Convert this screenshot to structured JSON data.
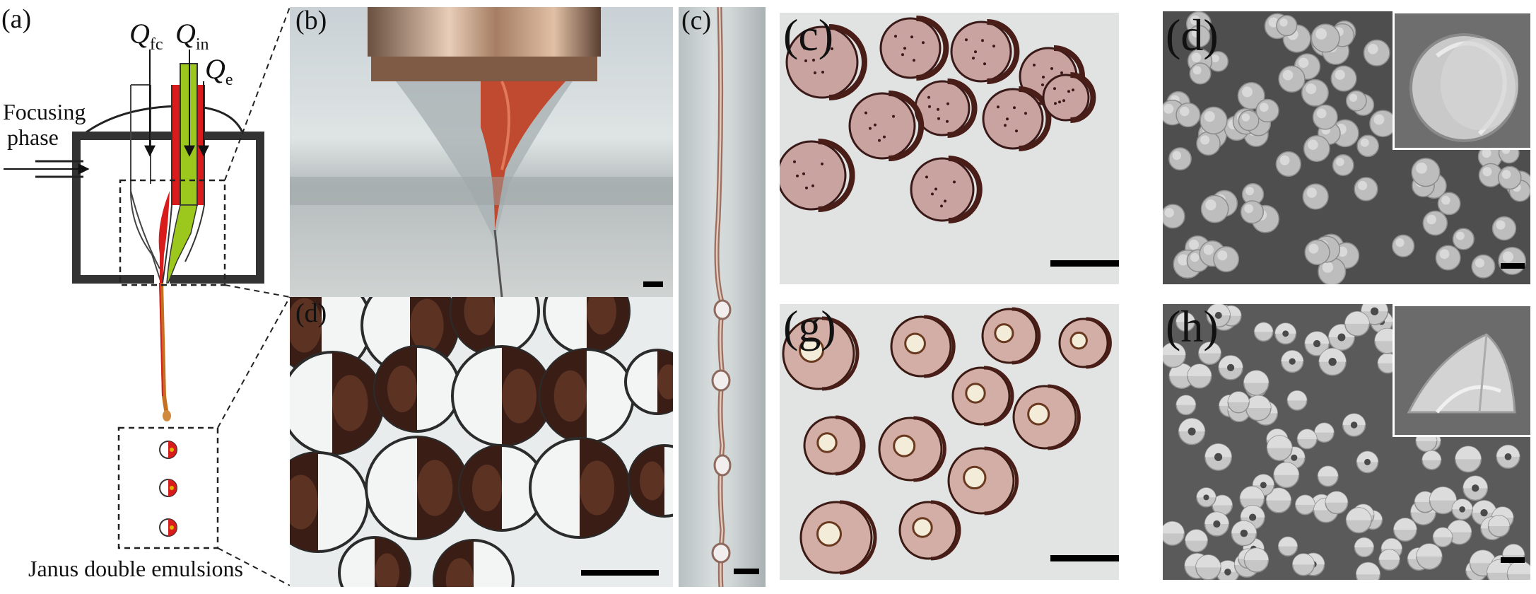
{
  "figure": {
    "schematic": {
      "panel_label": "(a)",
      "flow_label_fc_main": "Q",
      "flow_label_fc_sub": "fc",
      "flow_label_in_main": "Q",
      "flow_label_in_sub": "in",
      "flow_label_e_main": "Q",
      "flow_label_e_sub": "e",
      "focusing_phase_line1": "Focusing",
      "focusing_phase_line2": "phase",
      "caption": "Janus double emulsions"
    },
    "panels": [
      {
        "id": "b1",
        "label": "(b)",
        "kind": "photo-nozzle"
      },
      {
        "id": "d1",
        "label": "(d)",
        "kind": "optical-janus-droplets"
      },
      {
        "id": "c1",
        "label": "(c)",
        "kind": "jet-thread"
      },
      {
        "id": "c2",
        "label": "(c)",
        "kind": "optical-microparticles"
      },
      {
        "id": "d2",
        "label": "(d)",
        "kind": "sem-spheres"
      },
      {
        "id": "g",
        "label": "(g)",
        "kind": "optical-hollow-particles"
      },
      {
        "id": "h",
        "label": "(h)",
        "kind": "sem-hemispheres"
      }
    ]
  }
}
